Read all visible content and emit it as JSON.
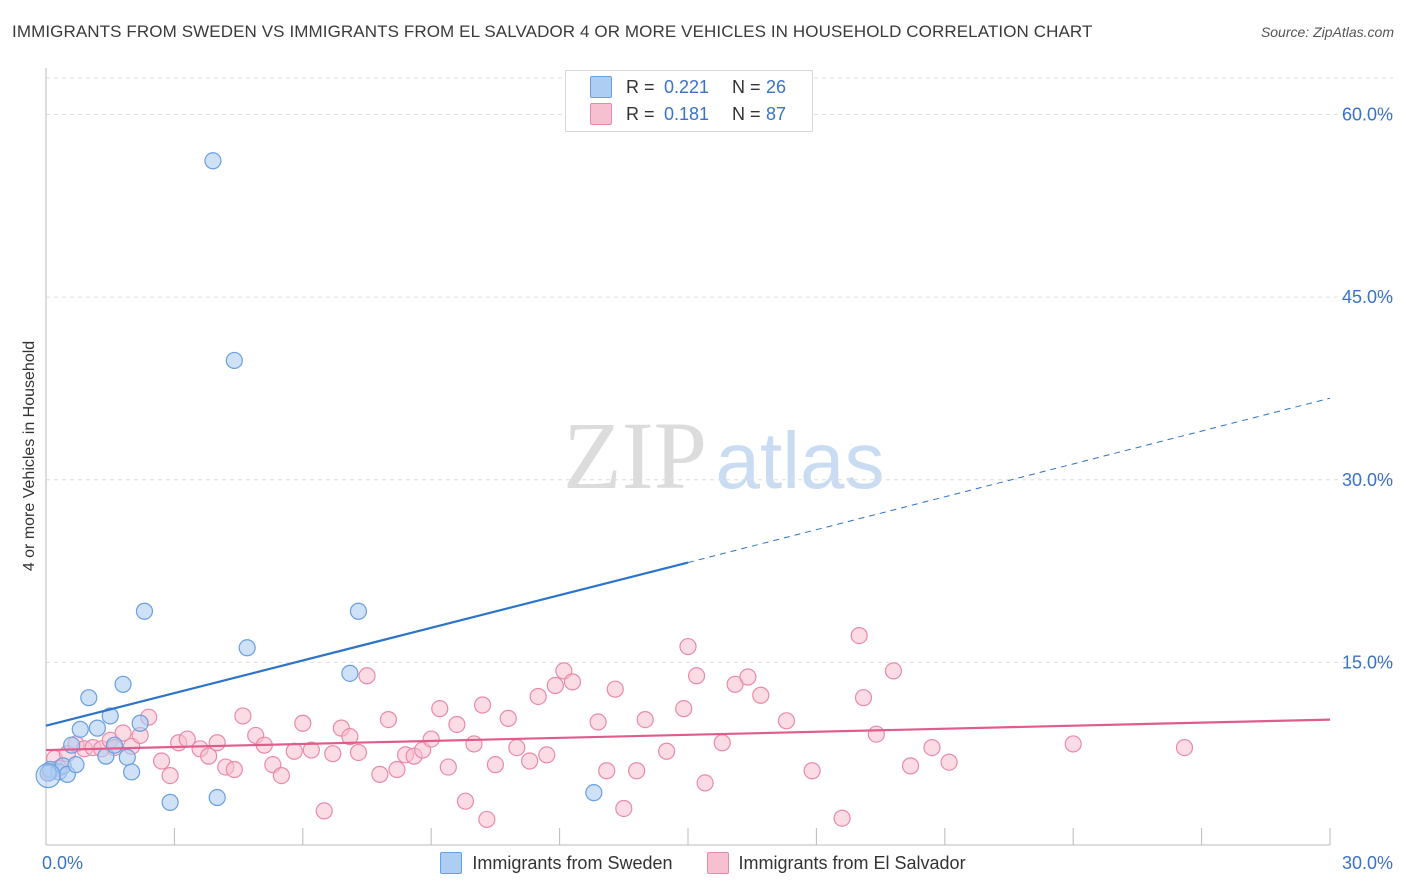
{
  "header": {
    "title": "IMMIGRANTS FROM SWEDEN VS IMMIGRANTS FROM EL SALVADOR 4 OR MORE VEHICLES IN HOUSEHOLD CORRELATION CHART",
    "source": "Source: ZipAtlas.com"
  },
  "watermark": {
    "zip": "ZIP",
    "atlas": "atlas"
  },
  "stats_box": {
    "rows": [
      {
        "r_label": "R =",
        "r_value": "0.221",
        "n_label": "N =",
        "n_value": "26"
      },
      {
        "r_label": "R =",
        "r_value": "0.181",
        "n_label": "N =",
        "n_value": "87"
      }
    ]
  },
  "legend": {
    "sweden": "Immigrants from Sweden",
    "elsalvador": "Immigrants from El Salvador"
  },
  "colors": {
    "sweden_fill": "#aecdf2",
    "sweden_stroke": "#6a9fe0",
    "sweden_line": "#2d73c8",
    "elsalvador_fill": "#f7c0d0",
    "elsalvador_stroke": "#e98aaa",
    "elsalvador_line": "#e05c8c",
    "tick_label": "#3a72c8",
    "grid": "#dedede"
  },
  "chart_data": {
    "type": "scatter",
    "title": "IMMIGRANTS FROM SWEDEN VS IMMIGRANTS FROM EL SALVADOR 4 OR MORE VEHICLES IN HOUSEHOLD CORRELATION CHART",
    "xlabel": "",
    "ylabel": "4 or more Vehicles in Household",
    "xlim": [
      0,
      30
    ],
    "ylim": [
      0,
      63
    ],
    "x_tick_labels": [
      "0.0%",
      "30.0%"
    ],
    "y_ticks": [
      15,
      30,
      45,
      60
    ],
    "y_tick_labels": [
      "15.0%",
      "30.0%",
      "45.0%",
      "60.0%"
    ],
    "grid": true,
    "series": [
      {
        "name": "Immigrants from Sweden",
        "R": 0.221,
        "N": 26,
        "trend": {
          "x0": 0,
          "y0": 9.8,
          "x1": 15,
          "y1": 23.2,
          "dash_to_x": 30,
          "dash_to_y": 36.7
        },
        "points": [
          [
            0.1,
            6.2
          ],
          [
            0.3,
            6.0
          ],
          [
            0.4,
            6.5
          ],
          [
            0.5,
            5.8
          ],
          [
            0.6,
            8.2
          ],
          [
            0.8,
            9.5
          ],
          [
            1.0,
            12.1
          ],
          [
            1.2,
            9.6
          ],
          [
            1.4,
            7.3
          ],
          [
            1.5,
            10.6
          ],
          [
            1.6,
            8.2
          ],
          [
            1.8,
            13.2
          ],
          [
            1.9,
            7.2
          ],
          [
            2.0,
            6.0
          ],
          [
            2.2,
            10.0
          ],
          [
            2.3,
            19.2
          ],
          [
            2.9,
            3.5
          ],
          [
            3.9,
            56.2
          ],
          [
            4.0,
            3.9
          ],
          [
            4.4,
            39.8
          ],
          [
            4.7,
            16.2
          ],
          [
            7.1,
            14.1
          ],
          [
            7.3,
            19.2
          ],
          [
            12.8,
            4.3
          ],
          [
            0.05,
            5.9
          ],
          [
            0.7,
            6.6
          ]
        ]
      },
      {
        "name": "Immigrants from El Salvador",
        "R": 0.181,
        "N": 87,
        "trend": {
          "x0": 0,
          "y0": 7.8,
          "x1": 30,
          "y1": 10.3
        },
        "points": [
          [
            0.1,
            6.0
          ],
          [
            0.2,
            7.1
          ],
          [
            0.3,
            6.3
          ],
          [
            0.5,
            7.5
          ],
          [
            0.7,
            8.3
          ],
          [
            0.9,
            7.9
          ],
          [
            1.1,
            8.0
          ],
          [
            1.3,
            7.9
          ],
          [
            1.5,
            8.6
          ],
          [
            1.6,
            8.0
          ],
          [
            1.8,
            9.2
          ],
          [
            2.0,
            8.1
          ],
          [
            2.2,
            9.0
          ],
          [
            2.4,
            10.5
          ],
          [
            2.7,
            6.9
          ],
          [
            2.9,
            5.7
          ],
          [
            3.1,
            8.4
          ],
          [
            3.3,
            8.7
          ],
          [
            3.6,
            7.9
          ],
          [
            3.8,
            7.3
          ],
          [
            4.0,
            8.4
          ],
          [
            4.2,
            6.4
          ],
          [
            4.4,
            6.2
          ],
          [
            4.6,
            10.6
          ],
          [
            4.9,
            9.0
          ],
          [
            5.1,
            8.2
          ],
          [
            5.3,
            6.6
          ],
          [
            5.5,
            5.7
          ],
          [
            5.8,
            7.7
          ],
          [
            6.0,
            10.0
          ],
          [
            6.2,
            7.8
          ],
          [
            6.5,
            2.8
          ],
          [
            6.7,
            7.5
          ],
          [
            6.9,
            9.6
          ],
          [
            7.1,
            8.9
          ],
          [
            7.3,
            7.6
          ],
          [
            7.5,
            13.9
          ],
          [
            7.8,
            5.8
          ],
          [
            8.0,
            10.3
          ],
          [
            8.2,
            6.2
          ],
          [
            8.4,
            7.4
          ],
          [
            8.6,
            7.3
          ],
          [
            8.8,
            7.8
          ],
          [
            9.0,
            8.7
          ],
          [
            9.2,
            11.2
          ],
          [
            9.4,
            6.4
          ],
          [
            9.6,
            9.9
          ],
          [
            9.8,
            3.6
          ],
          [
            10.0,
            8.3
          ],
          [
            10.2,
            11.5
          ],
          [
            10.3,
            2.1
          ],
          [
            10.5,
            6.6
          ],
          [
            10.8,
            10.4
          ],
          [
            11.0,
            8.0
          ],
          [
            11.3,
            6.9
          ],
          [
            11.5,
            12.2
          ],
          [
            11.7,
            7.4
          ],
          [
            11.9,
            13.1
          ],
          [
            12.1,
            14.3
          ],
          [
            12.3,
            13.4
          ],
          [
            12.9,
            10.1
          ],
          [
            13.1,
            6.1
          ],
          [
            13.3,
            12.8
          ],
          [
            13.5,
            3.0
          ],
          [
            13.8,
            6.1
          ],
          [
            14.0,
            10.3
          ],
          [
            14.5,
            7.7
          ],
          [
            14.9,
            11.2
          ],
          [
            15.0,
            16.3
          ],
          [
            15.2,
            13.9
          ],
          [
            15.4,
            5.1
          ],
          [
            15.8,
            8.4
          ],
          [
            16.1,
            13.2
          ],
          [
            16.4,
            13.8
          ],
          [
            16.7,
            12.3
          ],
          [
            17.3,
            10.2
          ],
          [
            17.9,
            6.1
          ],
          [
            18.6,
            2.2
          ],
          [
            19.0,
            17.2
          ],
          [
            19.1,
            12.1
          ],
          [
            19.4,
            9.1
          ],
          [
            19.8,
            14.3
          ],
          [
            20.2,
            6.5
          ],
          [
            20.7,
            8.0
          ],
          [
            21.1,
            6.8
          ],
          [
            24.0,
            8.3
          ],
          [
            26.6,
            8.0
          ]
        ]
      }
    ]
  }
}
